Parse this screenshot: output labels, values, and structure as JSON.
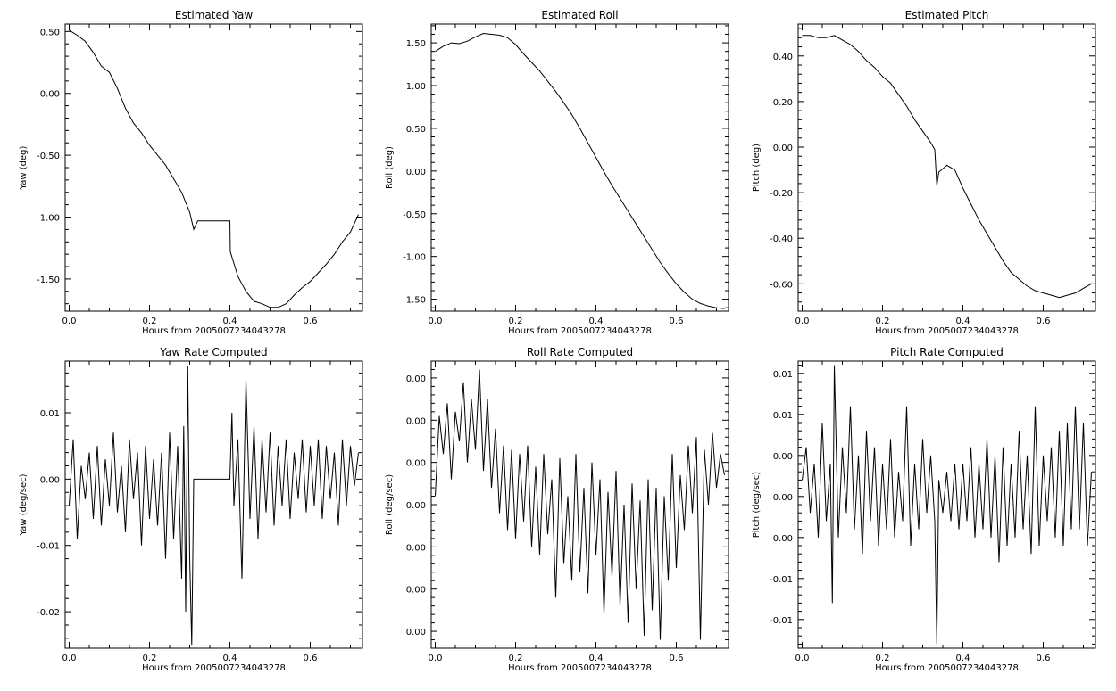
{
  "chart_data": [
    {
      "type": "line",
      "title": "Estimated Yaw",
      "xlabel": "Hours from 2005007234043278",
      "ylabel": "Yaw (deg)",
      "xlim": [
        -0.01,
        0.73
      ],
      "ylim": [
        -1.76,
        0.56
      ],
      "xticks": [
        0.0,
        0.2,
        0.4,
        0.6
      ],
      "xtick_labels": [
        "0.0",
        "0.2",
        "0.4",
        "0.6"
      ],
      "yticks": [
        0.5,
        0.0,
        -0.5,
        -1.0,
        -1.5
      ],
      "ytick_labels": [
        "0.50",
        "0.00",
        "-0.50",
        "-1.00",
        "-1.50"
      ],
      "series": [
        {
          "x": [
            0.0,
            0.02,
            0.04,
            0.06,
            0.08,
            0.1,
            0.12,
            0.14,
            0.16,
            0.18,
            0.2,
            0.22,
            0.24,
            0.26,
            0.28,
            0.3,
            0.31,
            0.32,
            0.35,
            0.4,
            0.401,
            0.42,
            0.44,
            0.46,
            0.48,
            0.5,
            0.52,
            0.54,
            0.56,
            0.58,
            0.6,
            0.62,
            0.64,
            0.66,
            0.68,
            0.7,
            0.72
          ],
          "values": [
            0.51,
            0.47,
            0.42,
            0.33,
            0.22,
            0.17,
            0.04,
            -0.12,
            -0.24,
            -0.32,
            -0.42,
            -0.5,
            -0.58,
            -0.69,
            -0.8,
            -0.96,
            -1.1,
            -1.03,
            -1.03,
            -1.03,
            -1.28,
            -1.48,
            -1.6,
            -1.68,
            -1.7,
            -1.73,
            -1.73,
            -1.7,
            -1.63,
            -1.57,
            -1.52,
            -1.45,
            -1.38,
            -1.3,
            -1.2,
            -1.12,
            -0.98
          ]
        }
      ]
    },
    {
      "type": "line",
      "title": "Estimated Roll",
      "xlabel": "Hours from 2005007234043278",
      "ylabel": "Roll (deg)",
      "xlim": [
        -0.01,
        0.73
      ],
      "ylim": [
        -1.64,
        1.72
      ],
      "xticks": [
        0.0,
        0.2,
        0.4,
        0.6
      ],
      "xtick_labels": [
        "0.0",
        "0.2",
        "0.4",
        "0.6"
      ],
      "yticks": [
        1.5,
        1.0,
        0.5,
        0.0,
        -0.5,
        -1.0,
        -1.5
      ],
      "ytick_labels": [
        "1.50",
        "1.00",
        "0.50",
        "0.00",
        "-0.50",
        "-1.00",
        "-1.50"
      ],
      "series": [
        {
          "x": [
            0.0,
            0.02,
            0.04,
            0.06,
            0.08,
            0.1,
            0.12,
            0.14,
            0.16,
            0.18,
            0.2,
            0.22,
            0.24,
            0.26,
            0.28,
            0.3,
            0.32,
            0.34,
            0.36,
            0.38,
            0.4,
            0.42,
            0.44,
            0.46,
            0.48,
            0.5,
            0.52,
            0.54,
            0.56,
            0.58,
            0.6,
            0.62,
            0.64,
            0.66,
            0.68,
            0.7,
            0.72
          ],
          "values": [
            1.4,
            1.46,
            1.5,
            1.49,
            1.52,
            1.57,
            1.61,
            1.6,
            1.59,
            1.56,
            1.48,
            1.37,
            1.27,
            1.17,
            1.05,
            0.93,
            0.8,
            0.66,
            0.5,
            0.33,
            0.16,
            -0.01,
            -0.17,
            -0.32,
            -0.47,
            -0.62,
            -0.77,
            -0.92,
            -1.07,
            -1.2,
            -1.32,
            -1.42,
            -1.5,
            -1.55,
            -1.58,
            -1.6,
            -1.61
          ]
        }
      ]
    },
    {
      "type": "line",
      "title": "Estimated Pitch",
      "xlabel": "Hours from 2005007234043278",
      "ylabel": "Pitch (deg)",
      "xlim": [
        -0.01,
        0.73
      ],
      "ylim": [
        -0.72,
        0.54
      ],
      "xticks": [
        0.0,
        0.2,
        0.4,
        0.6
      ],
      "xtick_labels": [
        "0.0",
        "0.2",
        "0.4",
        "0.6"
      ],
      "yticks": [
        0.4,
        0.2,
        0.0,
        -0.2,
        -0.4,
        -0.6
      ],
      "ytick_labels": [
        "0.40",
        "0.20",
        "0.00",
        "-0.20",
        "-0.40",
        "-0.60"
      ],
      "series": [
        {
          "x": [
            0.0,
            0.02,
            0.04,
            0.06,
            0.08,
            0.1,
            0.12,
            0.14,
            0.16,
            0.18,
            0.2,
            0.22,
            0.24,
            0.26,
            0.28,
            0.3,
            0.32,
            0.33,
            0.335,
            0.34,
            0.36,
            0.38,
            0.4,
            0.42,
            0.44,
            0.46,
            0.48,
            0.5,
            0.52,
            0.54,
            0.56,
            0.58,
            0.6,
            0.62,
            0.64,
            0.66,
            0.68,
            0.7,
            0.72
          ],
          "values": [
            0.49,
            0.49,
            0.48,
            0.48,
            0.49,
            0.47,
            0.45,
            0.42,
            0.38,
            0.35,
            0.31,
            0.28,
            0.23,
            0.18,
            0.12,
            0.07,
            0.02,
            -0.01,
            -0.17,
            -0.11,
            -0.08,
            -0.1,
            -0.18,
            -0.25,
            -0.32,
            -0.38,
            -0.44,
            -0.5,
            -0.55,
            -0.58,
            -0.61,
            -0.63,
            -0.64,
            -0.65,
            -0.66,
            -0.65,
            -0.64,
            -0.62,
            -0.6
          ]
        }
      ]
    },
    {
      "type": "line",
      "title": "Yaw Rate Computed",
      "xlabel": "Hours from 2005007234043278",
      "ylabel": "Yaw (deg/sec)",
      "xlim": [
        -0.01,
        0.73
      ],
      "ylim": [
        -0.0255,
        0.0178
      ],
      "xticks": [
        0.0,
        0.2,
        0.4,
        0.6
      ],
      "xtick_labels": [
        "0.0",
        "0.2",
        "0.4",
        "0.6"
      ],
      "yticks": [
        0.01,
        0.0,
        -0.01,
        -0.02
      ],
      "ytick_labels": [
        "0.01",
        "0.00",
        "-0.01",
        "-0.02"
      ],
      "series": [
        {
          "x": [
            0.0,
            0.01,
            0.02,
            0.03,
            0.04,
            0.05,
            0.06,
            0.07,
            0.08,
            0.09,
            0.1,
            0.11,
            0.12,
            0.13,
            0.14,
            0.15,
            0.16,
            0.17,
            0.18,
            0.19,
            0.2,
            0.21,
            0.22,
            0.23,
            0.24,
            0.25,
            0.26,
            0.27,
            0.28,
            0.285,
            0.29,
            0.295,
            0.3,
            0.305,
            0.31,
            0.32,
            0.33,
            0.35,
            0.37,
            0.39,
            0.4,
            0.405,
            0.41,
            0.42,
            0.43,
            0.44,
            0.45,
            0.46,
            0.47,
            0.48,
            0.49,
            0.5,
            0.51,
            0.52,
            0.53,
            0.54,
            0.55,
            0.56,
            0.57,
            0.58,
            0.59,
            0.6,
            0.61,
            0.62,
            0.63,
            0.64,
            0.65,
            0.66,
            0.67,
            0.68,
            0.69,
            0.7,
            0.71,
            0.72
          ],
          "values": [
            -0.004,
            0.006,
            -0.009,
            0.002,
            -0.003,
            0.004,
            -0.006,
            0.005,
            -0.007,
            0.003,
            -0.004,
            0.007,
            -0.005,
            0.002,
            -0.008,
            0.006,
            -0.003,
            0.004,
            -0.01,
            0.005,
            -0.006,
            0.003,
            -0.007,
            0.004,
            -0.012,
            0.007,
            -0.009,
            0.005,
            -0.015,
            0.008,
            -0.02,
            0.017,
            -0.012,
            -0.025,
            0.0,
            0.0,
            0.0,
            0.0,
            0.0,
            0.0,
            0.0,
            0.01,
            -0.004,
            0.006,
            -0.015,
            0.015,
            -0.006,
            0.008,
            -0.009,
            0.006,
            -0.005,
            0.007,
            -0.007,
            0.005,
            -0.004,
            0.006,
            -0.006,
            0.004,
            -0.003,
            0.006,
            -0.005,
            0.005,
            -0.004,
            0.006,
            -0.006,
            0.005,
            -0.003,
            0.004,
            -0.007,
            0.006,
            -0.004,
            0.005,
            -0.001,
            0.004
          ]
        }
      ]
    },
    {
      "type": "line",
      "title": "Roll Rate Computed",
      "xlabel": "Hours from 2005007234043278",
      "ylabel": "Roll (deg/sec)",
      "xlim": [
        -0.01,
        0.73
      ],
      "ylim": [
        -0.0044,
        0.0024
      ],
      "xticks": [
        0.0,
        0.2,
        0.4,
        0.6
      ],
      "xtick_labels": [
        "0.0",
        "0.2",
        "0.4",
        "0.6"
      ],
      "yticks": [
        0.002,
        0.001,
        0.0,
        -0.001,
        -0.002,
        -0.003,
        -0.004
      ],
      "ytick_labels": [
        "0.00",
        "0.00",
        "0.00",
        "0.00",
        "0.00",
        "0.00",
        "0.00"
      ],
      "series": [
        {
          "x": [
            0.0,
            0.01,
            0.02,
            0.03,
            0.04,
            0.05,
            0.06,
            0.07,
            0.08,
            0.09,
            0.1,
            0.11,
            0.12,
            0.13,
            0.14,
            0.15,
            0.16,
            0.17,
            0.18,
            0.19,
            0.2,
            0.21,
            0.22,
            0.23,
            0.24,
            0.25,
            0.26,
            0.27,
            0.28,
            0.29,
            0.3,
            0.31,
            0.32,
            0.33,
            0.34,
            0.35,
            0.36,
            0.37,
            0.38,
            0.39,
            0.4,
            0.41,
            0.42,
            0.43,
            0.44,
            0.45,
            0.46,
            0.47,
            0.48,
            0.49,
            0.5,
            0.51,
            0.52,
            0.53,
            0.54,
            0.55,
            0.56,
            0.57,
            0.58,
            0.59,
            0.6,
            0.61,
            0.62,
            0.63,
            0.64,
            0.65,
            0.66,
            0.67,
            0.68,
            0.69,
            0.7,
            0.71,
            0.72
          ],
          "values": [
            -0.0008,
            0.0011,
            0.0002,
            0.0014,
            -0.0004,
            0.0012,
            0.0005,
            0.0019,
            0.0,
            0.0015,
            0.0003,
            0.0022,
            -0.0002,
            0.0015,
            -0.0006,
            0.0008,
            -0.0012,
            0.0004,
            -0.0016,
            0.0003,
            -0.0018,
            0.0002,
            -0.0014,
            0.0004,
            -0.002,
            -0.0001,
            -0.0022,
            0.0002,
            -0.0017,
            -0.0004,
            -0.0032,
            0.0001,
            -0.0024,
            -0.0008,
            -0.0028,
            0.0002,
            -0.0026,
            -0.0006,
            -0.0031,
            0.0,
            -0.0022,
            -0.0004,
            -0.0036,
            -0.0007,
            -0.0027,
            -0.0002,
            -0.0034,
            -0.001,
            -0.0038,
            -0.0005,
            -0.003,
            -0.0009,
            -0.0041,
            -0.0004,
            -0.0035,
            -0.0006,
            -0.0042,
            -0.0008,
            -0.0028,
            0.0002,
            -0.0025,
            -0.0003,
            -0.0016,
            0.0004,
            -0.0012,
            0.0006,
            -0.0042,
            0.0003,
            -0.001,
            0.0007,
            -0.0006,
            0.0002,
            -0.0003
          ]
        }
      ]
    },
    {
      "type": "line",
      "title": "Pitch Rate Computed",
      "xlabel": "Hours from 2005007234043278",
      "ylabel": "Pitch (deg/sec)",
      "xlim": [
        -0.01,
        0.73
      ],
      "ylim": [
        -0.0185,
        0.0165
      ],
      "xticks": [
        0.0,
        0.2,
        0.4,
        0.6
      ],
      "xtick_labels": [
        "0.0",
        "0.2",
        "0.4",
        "0.6"
      ],
      "yticks": [
        0.015,
        0.01,
        0.005,
        0.0,
        -0.005,
        -0.01,
        -0.015
      ],
      "ytick_labels": [
        "0.01",
        "0.01",
        "0.00",
        "0.00",
        "0.00",
        "-0.01",
        "-0.01"
      ],
      "series": [
        {
          "x": [
            0.0,
            0.01,
            0.02,
            0.03,
            0.04,
            0.05,
            0.06,
            0.07,
            0.075,
            0.08,
            0.09,
            0.1,
            0.11,
            0.12,
            0.13,
            0.14,
            0.15,
            0.16,
            0.17,
            0.18,
            0.19,
            0.2,
            0.21,
            0.22,
            0.23,
            0.24,
            0.25,
            0.26,
            0.27,
            0.28,
            0.29,
            0.3,
            0.31,
            0.32,
            0.33,
            0.335,
            0.34,
            0.35,
            0.36,
            0.37,
            0.38,
            0.39,
            0.4,
            0.41,
            0.42,
            0.43,
            0.44,
            0.45,
            0.46,
            0.47,
            0.48,
            0.49,
            0.5,
            0.51,
            0.52,
            0.53,
            0.54,
            0.55,
            0.56,
            0.57,
            0.58,
            0.59,
            0.6,
            0.61,
            0.62,
            0.63,
            0.64,
            0.65,
            0.66,
            0.67,
            0.68,
            0.69,
            0.7,
            0.71,
            0.72
          ],
          "values": [
            0.002,
            0.006,
            -0.002,
            0.004,
            -0.005,
            0.009,
            -0.003,
            0.004,
            -0.013,
            0.016,
            -0.005,
            0.006,
            -0.002,
            0.011,
            -0.004,
            0.005,
            -0.007,
            0.008,
            -0.003,
            0.006,
            -0.006,
            0.004,
            -0.004,
            0.007,
            -0.005,
            0.003,
            -0.003,
            0.011,
            -0.006,
            0.004,
            -0.004,
            0.007,
            -0.002,
            0.005,
            -0.003,
            -0.018,
            0.002,
            -0.002,
            0.003,
            -0.003,
            0.004,
            -0.004,
            0.004,
            -0.003,
            0.006,
            -0.005,
            0.004,
            -0.004,
            0.007,
            -0.005,
            0.005,
            -0.008,
            0.006,
            -0.006,
            0.004,
            -0.005,
            0.008,
            -0.004,
            0.005,
            -0.007,
            0.011,
            -0.006,
            0.005,
            -0.003,
            0.006,
            -0.005,
            0.008,
            -0.006,
            0.009,
            -0.004,
            0.011,
            -0.004,
            0.009,
            -0.006,
            0.003
          ]
        }
      ]
    }
  ]
}
